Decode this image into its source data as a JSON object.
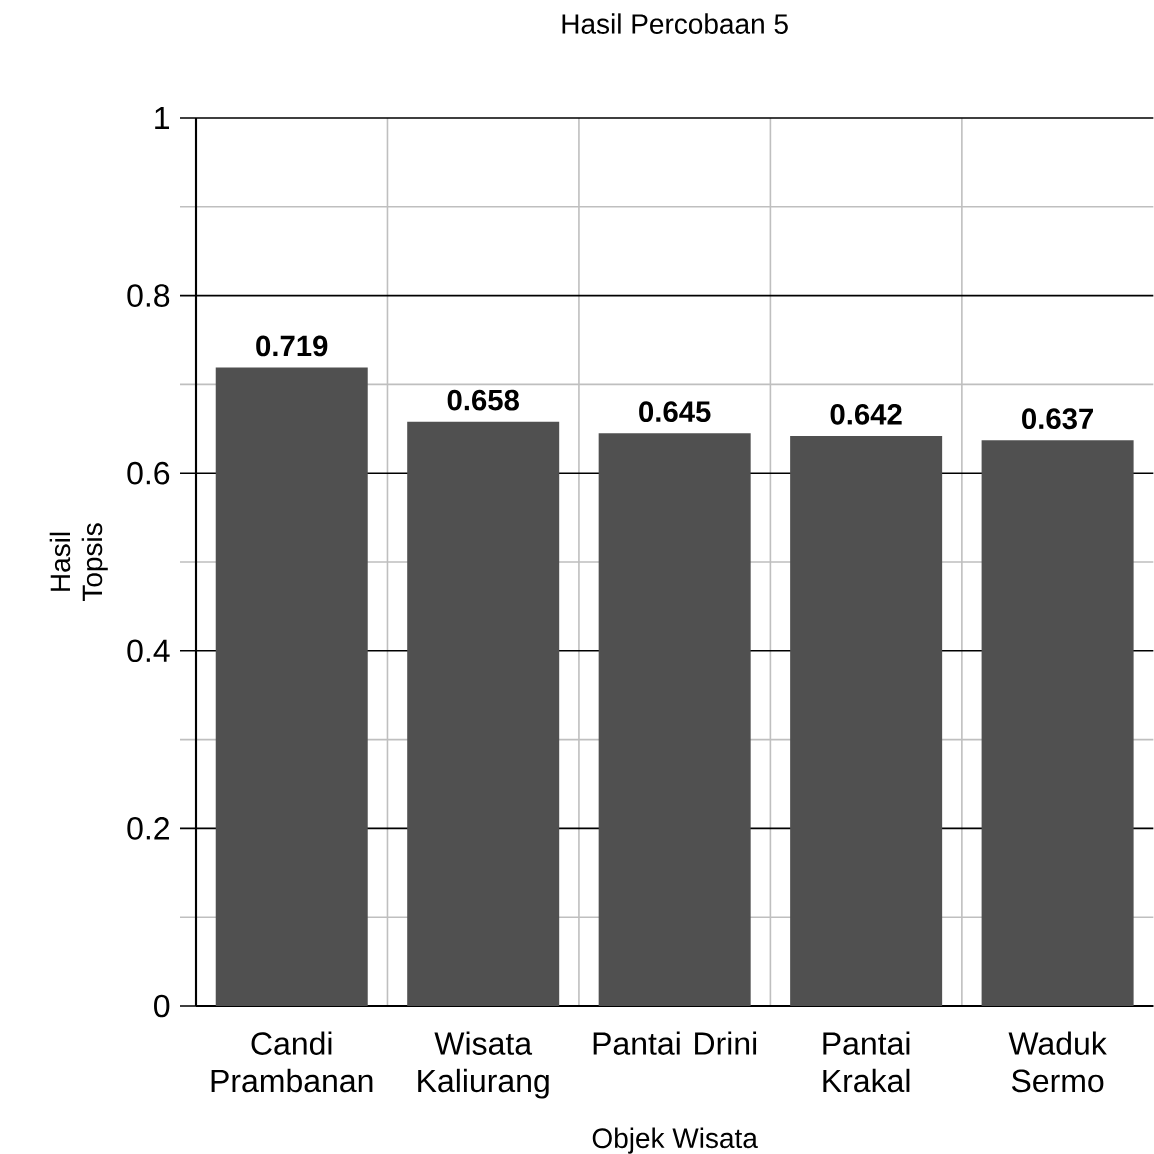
{
  "chart_data": {
    "type": "bar",
    "title": "Hasil Percobaan 5",
    "xlabel": "Objek Wisata",
    "ylabel": "Hasil Topsis",
    "categories": [
      "Candi Prambanan",
      "Wisata Kaliurang",
      "Pantai Drini",
      "Pantai Krakal",
      "Waduk Sermo"
    ],
    "values": [
      0.719,
      0.658,
      0.645,
      0.642,
      0.637
    ],
    "color": "#505050",
    "ylim": [
      0,
      1
    ],
    "yticks": [
      0,
      {
        "value": 0.1,
        "label": null
      },
      0.2,
      {
        "value": 0.3,
        "label": null
      },
      0.4,
      {
        "value": 0.5,
        "label": null
      },
      0.6,
      {
        "value": 0.7,
        "label": null
      },
      0.8,
      {
        "value": 0.9,
        "label": null
      },
      1
    ],
    "grid": true,
    "data_labels": true
  }
}
